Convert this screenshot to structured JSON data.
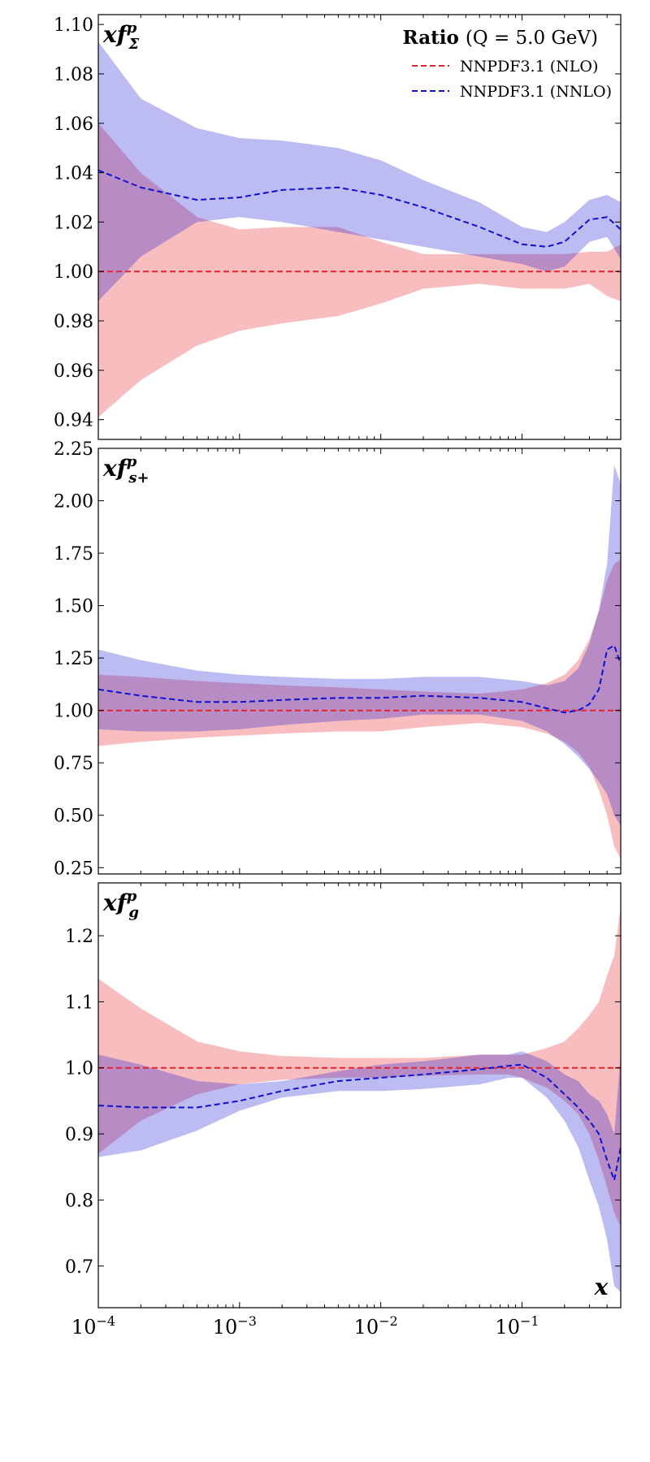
{
  "chart_data": [
    {
      "type": "area",
      "panel_label": {
        "base": "xf",
        "sup": "p",
        "sub": "Σ"
      },
      "legend": {
        "title_bold": "Ratio",
        "title_rest": "(Q = 5.0 GeV)",
        "placement": "top-right",
        "entries": [
          "NNPDF3.1 (NLO)",
          "NNPDF3.1 (NNLO)"
        ]
      },
      "x_scale": "log",
      "xlim": [
        0.0001,
        0.5
      ],
      "ylim": [
        0.932,
        1.104
      ],
      "yticks": [
        0.94,
        0.96,
        0.98,
        1.0,
        1.02,
        1.04,
        1.06,
        1.08,
        1.1
      ],
      "ytick_labels": [
        "0.94",
        "0.96",
        "0.98",
        "1.00",
        "1.02",
        "1.04",
        "1.06",
        "1.08",
        "1.10"
      ],
      "x": [
        0.0001,
        0.0002,
        0.0005,
        0.001,
        0.002,
        0.005,
        0.01,
        0.02,
        0.05,
        0.1,
        0.15,
        0.2,
        0.3,
        0.4,
        0.5
      ],
      "series": [
        {
          "name": "NNPDF3.1 (NLO)",
          "color": "#e8232b",
          "fill": "#ffb3b3",
          "central": [
            1.0,
            1.0,
            1.0,
            1.0,
            1.0,
            1.0,
            1.0,
            1.0,
            1.0,
            1.0,
            1.0,
            1.0,
            1.0,
            1.0,
            1.0
          ],
          "lower": [
            0.941,
            0.956,
            0.97,
            0.976,
            0.979,
            0.982,
            0.987,
            0.993,
            0.995,
            0.993,
            0.993,
            0.993,
            0.995,
            0.99,
            0.988
          ],
          "upper": [
            1.06,
            1.04,
            1.022,
            1.017,
            1.018,
            1.018,
            1.012,
            1.007,
            1.007,
            1.007,
            1.007,
            1.007,
            1.008,
            1.008,
            1.011
          ]
        },
        {
          "name": "NNPDF3.1 (NNLO)",
          "color": "#1010d0",
          "fill": "#b3b3ff",
          "central": [
            1.041,
            1.034,
            1.029,
            1.03,
            1.033,
            1.034,
            1.031,
            1.026,
            1.018,
            1.011,
            1.01,
            1.012,
            1.021,
            1.022,
            1.017
          ],
          "lower": [
            0.988,
            1.006,
            1.02,
            1.022,
            1.02,
            1.016,
            1.013,
            1.01,
            1.006,
            1.003,
            1.0,
            1.002,
            1.012,
            1.014,
            1.005
          ],
          "upper": [
            1.093,
            1.07,
            1.058,
            1.054,
            1.053,
            1.05,
            1.045,
            1.037,
            1.028,
            1.018,
            1.016,
            1.02,
            1.029,
            1.031,
            1.028
          ]
        }
      ]
    },
    {
      "type": "area",
      "panel_label": {
        "base": "xf",
        "sup": "p",
        "sub": "s+"
      },
      "x_scale": "log",
      "xlim": [
        0.0001,
        0.5
      ],
      "ylim": [
        0.22,
        2.25
      ],
      "yticks": [
        0.25,
        0.5,
        0.75,
        1.0,
        1.25,
        1.5,
        1.75,
        2.0,
        2.25
      ],
      "ytick_labels": [
        "0.25",
        "0.50",
        "0.75",
        "1.00",
        "1.25",
        "1.50",
        "1.75",
        "2.00",
        "2.25"
      ],
      "x": [
        0.0001,
        0.0002,
        0.0005,
        0.001,
        0.002,
        0.005,
        0.01,
        0.02,
        0.05,
        0.1,
        0.15,
        0.2,
        0.25,
        0.3,
        0.35,
        0.4,
        0.45,
        0.5
      ],
      "series": [
        {
          "name": "NNPDF3.1 (NLO)",
          "color": "#e8232b",
          "fill": "#ffb3b3",
          "central": [
            1.0,
            1.0,
            1.0,
            1.0,
            1.0,
            1.0,
            1.0,
            1.0,
            1.0,
            1.0,
            1.0,
            1.0,
            1.0,
            1.0,
            1.0,
            1.0,
            1.0,
            1.0
          ],
          "lower": [
            0.83,
            0.85,
            0.87,
            0.88,
            0.89,
            0.9,
            0.9,
            0.92,
            0.94,
            0.92,
            0.89,
            0.85,
            0.8,
            0.73,
            0.62,
            0.5,
            0.35,
            0.29
          ],
          "upper": [
            1.17,
            1.16,
            1.14,
            1.13,
            1.12,
            1.11,
            1.1,
            1.09,
            1.08,
            1.1,
            1.13,
            1.17,
            1.24,
            1.34,
            1.47,
            1.62,
            1.7,
            1.72
          ]
        },
        {
          "name": "NNPDF3.1 (NNLO)",
          "color": "#1010d0",
          "fill": "#b3b3ff",
          "central": [
            1.1,
            1.07,
            1.04,
            1.04,
            1.05,
            1.06,
            1.06,
            1.07,
            1.06,
            1.04,
            1.01,
            0.99,
            1.0,
            1.03,
            1.1,
            1.29,
            1.31,
            1.22
          ],
          "lower": [
            0.91,
            0.9,
            0.9,
            0.91,
            0.93,
            0.95,
            0.96,
            0.98,
            0.98,
            0.95,
            0.9,
            0.84,
            0.78,
            0.72,
            0.66,
            0.6,
            0.5,
            0.45
          ],
          "upper": [
            1.29,
            1.24,
            1.19,
            1.17,
            1.16,
            1.15,
            1.15,
            1.16,
            1.16,
            1.14,
            1.12,
            1.14,
            1.2,
            1.32,
            1.48,
            1.7,
            2.17,
            2.08
          ]
        }
      ]
    },
    {
      "type": "area",
      "panel_label": {
        "base": "xf",
        "sup": "p",
        "sub": "g"
      },
      "xlabel": "x",
      "x_scale": "log",
      "xlim": [
        0.0001,
        0.5
      ],
      "xticks": [
        0.0001,
        0.001,
        0.01,
        0.1
      ],
      "xtick_labels": [
        {
          "base": "10",
          "exp": "−4"
        },
        {
          "base": "10",
          "exp": "−3"
        },
        {
          "base": "10",
          "exp": "−2"
        },
        {
          "base": "10",
          "exp": "−1"
        }
      ],
      "ylim": [
        0.637,
        1.28
      ],
      "yticks": [
        0.7,
        0.8,
        0.9,
        1.0,
        1.1,
        1.2
      ],
      "ytick_labels": [
        "0.7",
        "0.8",
        "0.9",
        "1.0",
        "1.1",
        "1.2"
      ],
      "x": [
        0.0001,
        0.0002,
        0.0005,
        0.001,
        0.002,
        0.005,
        0.01,
        0.02,
        0.05,
        0.08,
        0.1,
        0.15,
        0.2,
        0.25,
        0.3,
        0.35,
        0.4,
        0.45,
        0.5
      ],
      "series": [
        {
          "name": "NNPDF3.1 (NLO)",
          "color": "#e8232b",
          "fill": "#ffb3b3",
          "central": [
            1.0,
            1.0,
            1.0,
            1.0,
            1.0,
            1.0,
            1.0,
            1.0,
            1.0,
            1.0,
            1.0,
            1.0,
            1.0,
            1.0,
            1.0,
            1.0,
            1.0,
            1.0,
            1.0
          ],
          "lower": [
            0.87,
            0.92,
            0.96,
            0.975,
            0.982,
            0.985,
            0.985,
            0.988,
            0.99,
            0.99,
            0.985,
            0.97,
            0.95,
            0.93,
            0.9,
            0.86,
            0.82,
            0.78,
            0.76
          ],
          "upper": [
            1.135,
            1.09,
            1.04,
            1.025,
            1.018,
            1.015,
            1.015,
            1.015,
            1.02,
            1.02,
            1.02,
            1.03,
            1.04,
            1.06,
            1.08,
            1.1,
            1.14,
            1.17,
            1.245
          ]
        },
        {
          "name": "NNPDF3.1 (NNLO)",
          "color": "#1010d0",
          "fill": "#b3b3ff",
          "central": [
            0.943,
            0.94,
            0.94,
            0.95,
            0.965,
            0.98,
            0.985,
            0.99,
            0.998,
            1.003,
            1.005,
            0.985,
            0.96,
            0.94,
            0.92,
            0.9,
            0.86,
            0.83,
            0.88
          ],
          "lower": [
            0.865,
            0.875,
            0.905,
            0.935,
            0.955,
            0.965,
            0.965,
            0.968,
            0.975,
            0.985,
            0.985,
            0.955,
            0.92,
            0.88,
            0.83,
            0.79,
            0.74,
            0.67,
            0.66
          ],
          "upper": [
            1.02,
            1.005,
            0.98,
            0.975,
            0.98,
            0.995,
            1.005,
            1.01,
            1.02,
            1.02,
            1.025,
            1.01,
            0.99,
            0.98,
            0.96,
            0.95,
            0.93,
            0.9,
            1.02
          ]
        }
      ]
    }
  ]
}
